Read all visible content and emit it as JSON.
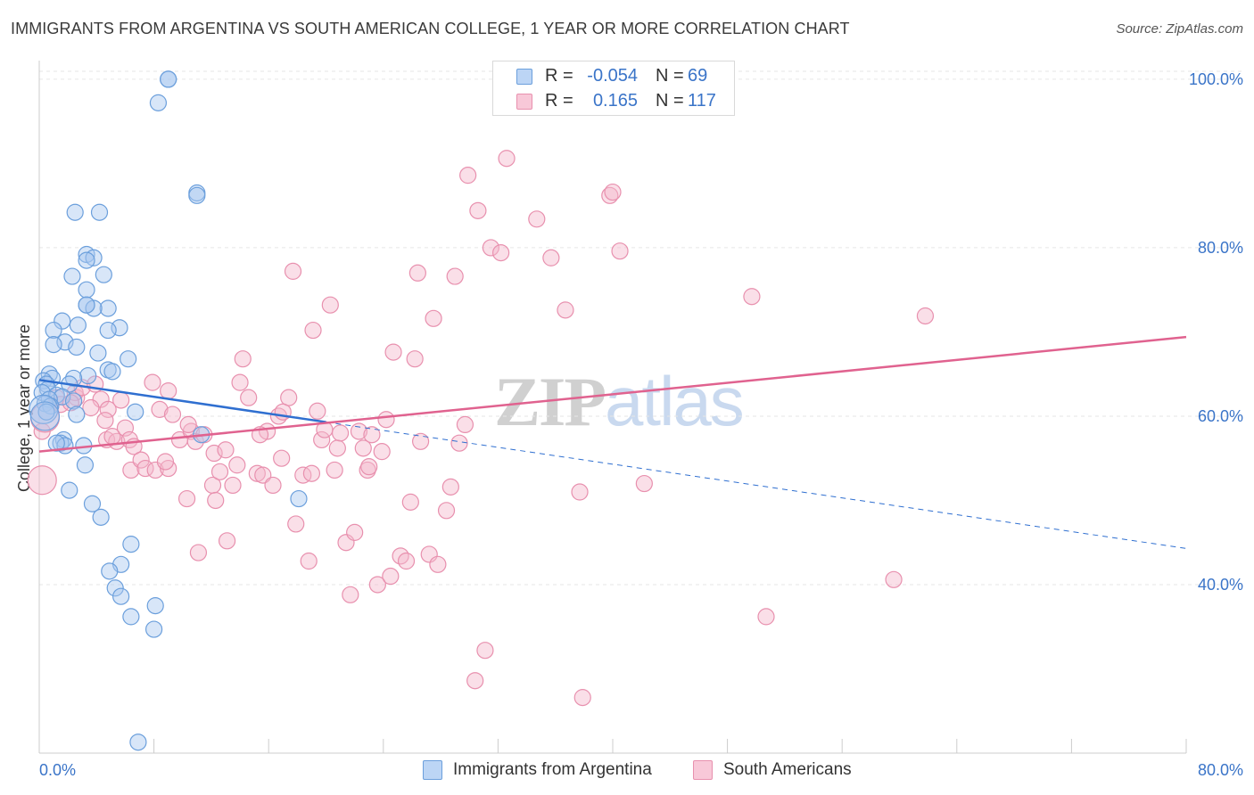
{
  "title": "IMMIGRANTS FROM ARGENTINA VS SOUTH AMERICAN COLLEGE, 1 YEAR OR MORE CORRELATION CHART",
  "source": "Source: ZipAtlas.com",
  "watermark": {
    "zip": "ZIP",
    "atlas": "atlas"
  },
  "colors": {
    "blue_fill": "#a8c8f0",
    "blue_stroke": "#6b9fdc",
    "blue_line": "#2f6fd0",
    "pink_fill": "#f5b8cc",
    "pink_stroke": "#e890ae",
    "pink_line": "#e0628f",
    "axis_label": "#3a74c8",
    "grid": "#e6e6e6"
  },
  "legend": {
    "rows": [
      {
        "r_label": "R =",
        "r_value": "-0.054",
        "n_label": "N =",
        "n_value": "69",
        "series": "blue"
      },
      {
        "r_label": "R =",
        "r_value": "0.165",
        "n_label": "N =",
        "n_value": "117",
        "series": "pink"
      }
    ]
  },
  "bottom_legend": [
    {
      "label": "Immigrants from Argentina",
      "series": "blue"
    },
    {
      "label": "South Americans",
      "series": "pink"
    }
  ],
  "chart_data": {
    "type": "scatter",
    "title": "IMMIGRANTS FROM ARGENTINA VS SOUTH AMERICAN COLLEGE, 1 YEAR OR MORE CORRELATION CHART",
    "xlabel": "",
    "ylabel": "College, 1 year or more",
    "xlim": [
      0,
      80
    ],
    "ylim": [
      20,
      102
    ],
    "x_tick_labels": [
      "0.0%",
      "80.0%"
    ],
    "y_ticks": [
      40,
      60,
      80,
      100
    ],
    "y_tick_labels": [
      "40.0%",
      "60.0%",
      "80.0%",
      "100.0%"
    ],
    "grid": true,
    "legend_position": "top-center",
    "series": [
      {
        "name": "Immigrants from Argentina",
        "color": "blue",
        "r": -0.054,
        "n": 69,
        "trend": {
          "x0": 0,
          "y0": 64.3,
          "x1": 20,
          "y1": 59.3,
          "extend_x": 80,
          "extend_y": 44.3
        },
        "points": [
          [
            9.0,
            100.0
          ],
          [
            8.3,
            97.2
          ],
          [
            11.0,
            86.5
          ],
          [
            11.0,
            86.2
          ],
          [
            2.5,
            84.2
          ],
          [
            4.2,
            84.2
          ],
          [
            3.3,
            79.2
          ],
          [
            3.8,
            78.8
          ],
          [
            3.3,
            78.5
          ],
          [
            2.3,
            76.6
          ],
          [
            4.5,
            76.8
          ],
          [
            3.3,
            75.0
          ],
          [
            3.3,
            73.2
          ],
          [
            4.8,
            72.8
          ],
          [
            3.8,
            72.8
          ],
          [
            1.6,
            71.3
          ],
          [
            2.7,
            70.8
          ],
          [
            5.6,
            70.5
          ],
          [
            4.8,
            70.2
          ],
          [
            1.0,
            70.2
          ],
          [
            1.8,
            68.8
          ],
          [
            1.0,
            68.5
          ],
          [
            2.6,
            68.2
          ],
          [
            4.1,
            67.5
          ],
          [
            6.2,
            66.8
          ],
          [
            4.8,
            65.5
          ],
          [
            5.1,
            65.3
          ],
          [
            0.7,
            65.0
          ],
          [
            3.4,
            64.8
          ],
          [
            0.9,
            64.5
          ],
          [
            2.4,
            64.5
          ],
          [
            0.3,
            64.2
          ],
          [
            0.5,
            63.8
          ],
          [
            2.1,
            63.8
          ],
          [
            0.6,
            63.2
          ],
          [
            0.2,
            62.8
          ],
          [
            1.2,
            62.5
          ],
          [
            1.6,
            62.3
          ],
          [
            0.7,
            62.0
          ],
          [
            0.4,
            61.5
          ],
          [
            2.4,
            61.8
          ],
          [
            0.8,
            61.2
          ],
          [
            0.3,
            60.8
          ],
          [
            0.5,
            60.5
          ],
          [
            2.6,
            60.2
          ],
          [
            6.7,
            60.5
          ],
          [
            0.4,
            60.0
          ],
          [
            1.7,
            57.2
          ],
          [
            11.3,
            57.8
          ],
          [
            1.5,
            56.8
          ],
          [
            1.8,
            56.5
          ],
          [
            3.1,
            56.5
          ],
          [
            1.2,
            56.8
          ],
          [
            3.2,
            54.2
          ],
          [
            2.1,
            51.2
          ],
          [
            18.1,
            50.2
          ],
          [
            3.7,
            49.6
          ],
          [
            4.3,
            48.0
          ],
          [
            6.4,
            44.8
          ],
          [
            5.7,
            42.4
          ],
          [
            4.9,
            41.6
          ],
          [
            5.3,
            39.6
          ],
          [
            5.7,
            38.6
          ],
          [
            8.1,
            37.5
          ],
          [
            6.4,
            36.2
          ],
          [
            8.0,
            34.7
          ],
          [
            6.9,
            21.3
          ],
          [
            9.0,
            100.0
          ],
          [
            3.3,
            73.2
          ]
        ]
      },
      {
        "name": "South Americans",
        "color": "pink",
        "r": 0.165,
        "n": 117,
        "trend": {
          "x0": 0,
          "y0": 55.8,
          "x1": 80,
          "y1": 69.4
        },
        "points": [
          [
            0.2,
            52.4
          ],
          [
            0.2,
            58.2
          ],
          [
            0.4,
            59.8
          ],
          [
            1.2,
            62.2
          ],
          [
            1.5,
            61.4
          ],
          [
            2.6,
            62.2
          ],
          [
            2.5,
            62.8
          ],
          [
            3.0,
            63.4
          ],
          [
            3.9,
            63.8
          ],
          [
            4.3,
            62.0
          ],
          [
            4.8,
            60.8
          ],
          [
            4.6,
            59.5
          ],
          [
            4.7,
            57.2
          ],
          [
            5.4,
            57.0
          ],
          [
            5.1,
            57.6
          ],
          [
            6.0,
            58.6
          ],
          [
            6.3,
            57.2
          ],
          [
            6.6,
            56.4
          ],
          [
            6.4,
            53.6
          ],
          [
            7.1,
            54.8
          ],
          [
            7.4,
            53.8
          ],
          [
            7.9,
            64.0
          ],
          [
            8.4,
            60.8
          ],
          [
            8.1,
            53.6
          ],
          [
            9.0,
            53.8
          ],
          [
            9.3,
            60.2
          ],
          [
            9.0,
            63.0
          ],
          [
            9.8,
            57.2
          ],
          [
            10.3,
            50.2
          ],
          [
            10.6,
            58.2
          ],
          [
            10.9,
            57.0
          ],
          [
            11.1,
            43.8
          ],
          [
            11.5,
            57.8
          ],
          [
            12.1,
            51.8
          ],
          [
            12.3,
            50.0
          ],
          [
            12.2,
            55.6
          ],
          [
            12.6,
            53.4
          ],
          [
            13.1,
            45.2
          ],
          [
            13.5,
            51.8
          ],
          [
            13.8,
            54.2
          ],
          [
            14.2,
            66.8
          ],
          [
            14.0,
            64.0
          ],
          [
            14.6,
            62.2
          ],
          [
            15.2,
            53.2
          ],
          [
            15.6,
            53.0
          ],
          [
            15.9,
            58.2
          ],
          [
            16.3,
            51.8
          ],
          [
            16.7,
            60.0
          ],
          [
            16.9,
            55.0
          ],
          [
            17.4,
            62.2
          ],
          [
            17.7,
            77.2
          ],
          [
            17.9,
            47.2
          ],
          [
            18.4,
            53.0
          ],
          [
            18.8,
            42.8
          ],
          [
            19.1,
            70.2
          ],
          [
            19.4,
            60.6
          ],
          [
            19.7,
            57.2
          ],
          [
            19.9,
            58.4
          ],
          [
            20.3,
            73.2
          ],
          [
            20.6,
            53.6
          ],
          [
            20.8,
            56.2
          ],
          [
            21.4,
            45.0
          ],
          [
            21.7,
            38.8
          ],
          [
            22.0,
            46.2
          ],
          [
            22.3,
            58.2
          ],
          [
            22.6,
            56.2
          ],
          [
            22.9,
            53.6
          ],
          [
            23.2,
            57.8
          ],
          [
            23.6,
            40.0
          ],
          [
            23.9,
            55.8
          ],
          [
            24.2,
            59.6
          ],
          [
            24.5,
            41.0
          ],
          [
            24.7,
            67.6
          ],
          [
            25.2,
            43.4
          ],
          [
            25.6,
            42.8
          ],
          [
            25.9,
            49.8
          ],
          [
            26.2,
            66.8
          ],
          [
            26.4,
            77.0
          ],
          [
            26.6,
            57.0
          ],
          [
            27.2,
            43.6
          ],
          [
            27.5,
            71.6
          ],
          [
            27.8,
            42.4
          ],
          [
            28.4,
            48.8
          ],
          [
            28.7,
            51.6
          ],
          [
            29.0,
            76.6
          ],
          [
            29.3,
            56.8
          ],
          [
            29.7,
            59.0
          ],
          [
            29.9,
            88.6
          ],
          [
            30.4,
            28.6
          ],
          [
            31.1,
            32.2
          ],
          [
            30.6,
            84.4
          ],
          [
            31.5,
            80.0
          ],
          [
            32.2,
            79.4
          ],
          [
            32.6,
            90.6
          ],
          [
            34.7,
            83.4
          ],
          [
            35.7,
            78.8
          ],
          [
            36.7,
            72.6
          ],
          [
            37.7,
            51.0
          ],
          [
            37.9,
            26.6
          ],
          [
            39.8,
            86.2
          ],
          [
            40.0,
            86.6
          ],
          [
            40.5,
            79.6
          ],
          [
            42.2,
            52.0
          ],
          [
            49.7,
            74.2
          ],
          [
            50.7,
            36.2
          ],
          [
            59.6,
            40.6
          ],
          [
            61.8,
            71.9
          ],
          [
            2.2,
            61.6
          ],
          [
            3.6,
            61.0
          ],
          [
            5.7,
            61.9
          ],
          [
            8.8,
            54.6
          ],
          [
            10.4,
            59.0
          ],
          [
            13.0,
            56.0
          ],
          [
            15.4,
            57.8
          ],
          [
            17.0,
            60.5
          ],
          [
            19.0,
            53.2
          ],
          [
            21.0,
            58.0
          ],
          [
            23.0,
            54.0
          ]
        ]
      }
    ]
  }
}
